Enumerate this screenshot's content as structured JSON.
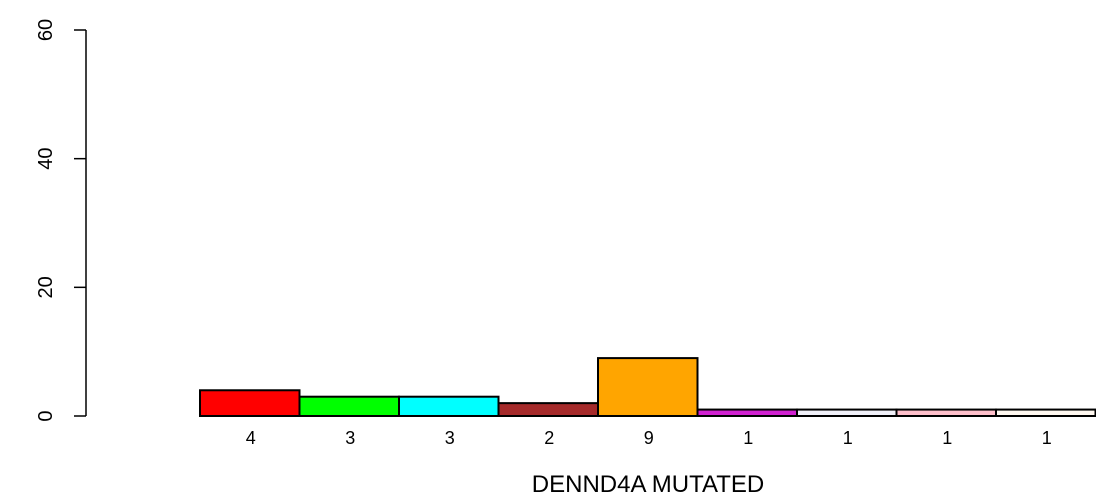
{
  "chart_data": {
    "type": "bar",
    "xlabel": "DENND4A MUTATED",
    "ylabel": "",
    "ylim": [
      0,
      60
    ],
    "y_ticks": [
      0,
      20,
      40,
      60
    ],
    "grid": false,
    "categories": [
      "4",
      "3",
      "3",
      "2",
      "9",
      "1",
      "1",
      "1",
      "1"
    ],
    "values": [
      4,
      3,
      3,
      2,
      9,
      1,
      1,
      1,
      1
    ],
    "colors": [
      "#ff0000",
      "#00ff00",
      "#00ffff",
      "#a52a2a",
      "#ffa500",
      "#d020d0",
      "#f0f0f8",
      "#ffc0cb",
      "#fff8f0"
    ]
  }
}
